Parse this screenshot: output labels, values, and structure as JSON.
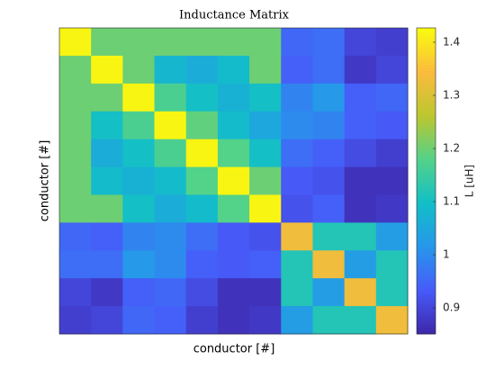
{
  "chart_data": {
    "type": "heatmap",
    "title": "Inductance Matrix",
    "x_label": "conductor [#]",
    "y_label": "conductor [#]",
    "colorbar_label": "L [uH]",
    "colormap": "parula",
    "z": [
      [
        1.42,
        1.2,
        1.2,
        1.2,
        1.2,
        1.2,
        1.2,
        0.95,
        0.96,
        0.9,
        0.89
      ],
      [
        1.2,
        1.42,
        1.2,
        1.08,
        1.06,
        1.09,
        1.2,
        0.94,
        0.96,
        0.88,
        0.9
      ],
      [
        1.2,
        1.2,
        1.42,
        1.17,
        1.1,
        1.07,
        1.1,
        0.99,
        1.02,
        0.94,
        0.95
      ],
      [
        1.2,
        1.1,
        1.17,
        1.42,
        1.19,
        1.09,
        1.05,
        1.0,
        0.99,
        0.94,
        0.93
      ],
      [
        1.2,
        1.06,
        1.1,
        1.17,
        1.42,
        1.18,
        1.1,
        0.96,
        0.94,
        0.91,
        0.89
      ],
      [
        1.2,
        1.09,
        1.07,
        1.09,
        1.18,
        1.42,
        1.2,
        0.93,
        0.92,
        0.87,
        0.87
      ],
      [
        1.2,
        1.2,
        1.1,
        1.06,
        1.09,
        1.18,
        1.42,
        0.92,
        0.94,
        0.87,
        0.88
      ],
      [
        0.95,
        0.94,
        0.99,
        1.0,
        0.96,
        0.93,
        0.92,
        1.33,
        1.12,
        1.12,
        1.03
      ],
      [
        0.96,
        0.96,
        1.02,
        1.0,
        0.94,
        0.93,
        0.94,
        1.12,
        1.33,
        1.03,
        1.12
      ],
      [
        0.9,
        0.88,
        0.94,
        0.95,
        0.91,
        0.87,
        0.87,
        1.12,
        1.03,
        1.33,
        1.12
      ],
      [
        0.89,
        0.9,
        0.95,
        0.94,
        0.89,
        0.87,
        0.88,
        1.03,
        1.12,
        1.12,
        1.33
      ]
    ],
    "clim": [
      0.851,
      1.427
    ],
    "cticks": [
      0.9,
      1,
      1.1,
      1.2,
      1.3,
      1.4
    ]
  }
}
